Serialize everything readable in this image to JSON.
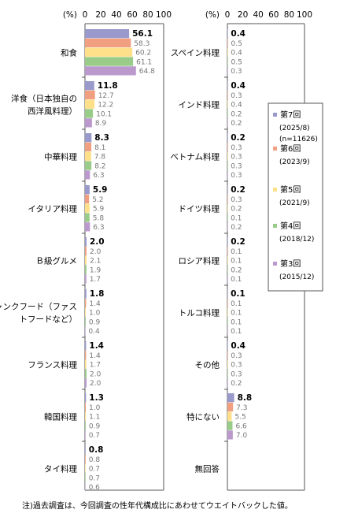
{
  "chart_data": {
    "type": "bar",
    "orientation": "horizontal",
    "unit": "(%)",
    "xlim": [
      0,
      100
    ],
    "ticks": [
      0,
      20,
      40,
      60,
      80,
      100
    ],
    "grid": false,
    "legend_position": "right-of-second-panel",
    "series": [
      {
        "name": "第7回",
        "sub": "(2025/8)",
        "sub2": "(n=11626)",
        "color": "#9999cc"
      },
      {
        "name": "第6回",
        "sub": "(2023/9)",
        "color": "#f0a080"
      },
      {
        "name": "第5回",
        "sub": "(2021/9)",
        "color": "#ffe08a"
      },
      {
        "name": "第4回",
        "sub": "(2018/12)",
        "color": "#99cc88"
      },
      {
        "name": "第3回",
        "sub": "(2015/12)",
        "color": "#bb99cc"
      }
    ],
    "panels": [
      {
        "categories": [
          {
            "label": [
              "和食"
            ],
            "values": [
              56.1,
              58.3,
              60.2,
              61.1,
              64.8
            ]
          },
          {
            "label": [
              "洋食（日本独自の",
              "西洋風料理）"
            ],
            "values": [
              11.8,
              12.7,
              12.2,
              10.1,
              8.9
            ]
          },
          {
            "label": [
              "中華料理"
            ],
            "values": [
              8.3,
              8.1,
              7.8,
              8.2,
              6.3
            ]
          },
          {
            "label": [
              "イタリア料理"
            ],
            "values": [
              5.9,
              5.2,
              5.9,
              5.8,
              6.3
            ]
          },
          {
            "label": [
              "Ｂ級グルメ"
            ],
            "values": [
              2.0,
              2.0,
              2.1,
              1.9,
              1.7
            ]
          },
          {
            "label": [
              "ジャンクフード（ファス",
              "トフードなど）"
            ],
            "values": [
              1.8,
              1.4,
              1.0,
              0.9,
              0.4
            ]
          },
          {
            "label": [
              "フランス料理"
            ],
            "values": [
              1.4,
              1.4,
              1.7,
              2.0,
              2.0
            ]
          },
          {
            "label": [
              "韓国料理"
            ],
            "values": [
              1.3,
              1.0,
              1.1,
              0.9,
              0.7
            ]
          },
          {
            "label": [
              "タイ料理"
            ],
            "values": [
              0.8,
              0.8,
              0.7,
              0.7,
              0.6
            ]
          }
        ]
      },
      {
        "categories": [
          {
            "label": [
              "スペイン料理"
            ],
            "values": [
              0.4,
              0.5,
              0.4,
              0.5,
              0.3
            ]
          },
          {
            "label": [
              "インド料理"
            ],
            "values": [
              0.4,
              0.3,
              0.4,
              0.2,
              0.2
            ]
          },
          {
            "label": [
              "ベトナム料理"
            ],
            "values": [
              0.2,
              0.3,
              0.3,
              0.3,
              0.3
            ]
          },
          {
            "label": [
              "ドイツ料理"
            ],
            "values": [
              0.2,
              0.3,
              0.2,
              0.1,
              0.2
            ]
          },
          {
            "label": [
              "ロシア料理"
            ],
            "values": [
              0.2,
              0.1,
              0.1,
              0.2,
              0.1
            ]
          },
          {
            "label": [
              "トルコ料理"
            ],
            "values": [
              0.1,
              0.1,
              0.1,
              0.1,
              0.1
            ]
          },
          {
            "label": [
              "その他"
            ],
            "values": [
              0.4,
              0.3,
              0.3,
              0.3,
              0.2
            ]
          },
          {
            "label": [
              "特にない"
            ],
            "values": [
              8.8,
              7.3,
              5.5,
              6.6,
              7.0
            ]
          },
          {
            "label": [
              "無回答"
            ],
            "values": [
              null,
              null,
              null,
              null,
              null
            ]
          }
        ]
      }
    ]
  },
  "footnote": "注)過去調査は、今回調査の性年代構成比にあわせてウエイトバックした値。"
}
